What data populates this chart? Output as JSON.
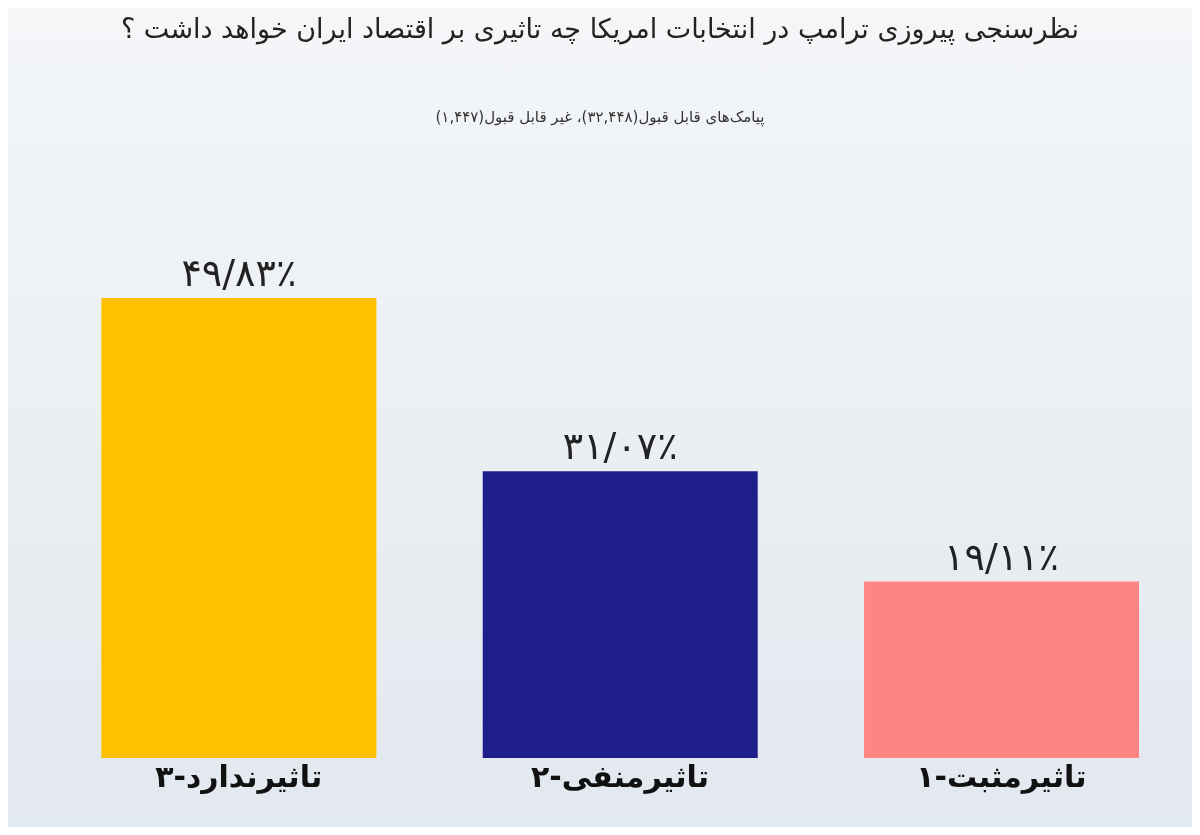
{
  "chart_data": {
    "type": "bar",
    "title": "نظرسنجی پیروزی ترامپ در انتخابات امریکا چه تاثیری بر اقتصاد ایران خواهد داشت ؟",
    "subtitle": "پیامک‌های قابل قبول(۳۲,۴۴۸)، غیر قابل قبول(۱,۴۴۷)",
    "categories": [
      "۳-تاثیرندارد",
      "۲-تاثیرمنفی",
      "۱-تاثیرمثبت"
    ],
    "values": [
      49.83,
      31.07,
      19.11
    ],
    "colors": [
      "#ffc000",
      "#1f1f8c",
      "#ff8585"
    ],
    "value_labels": [
      "۴۹/۸۳٪",
      "۳۱/۰۷٪",
      "۱۹/۱۱٪"
    ]
  }
}
